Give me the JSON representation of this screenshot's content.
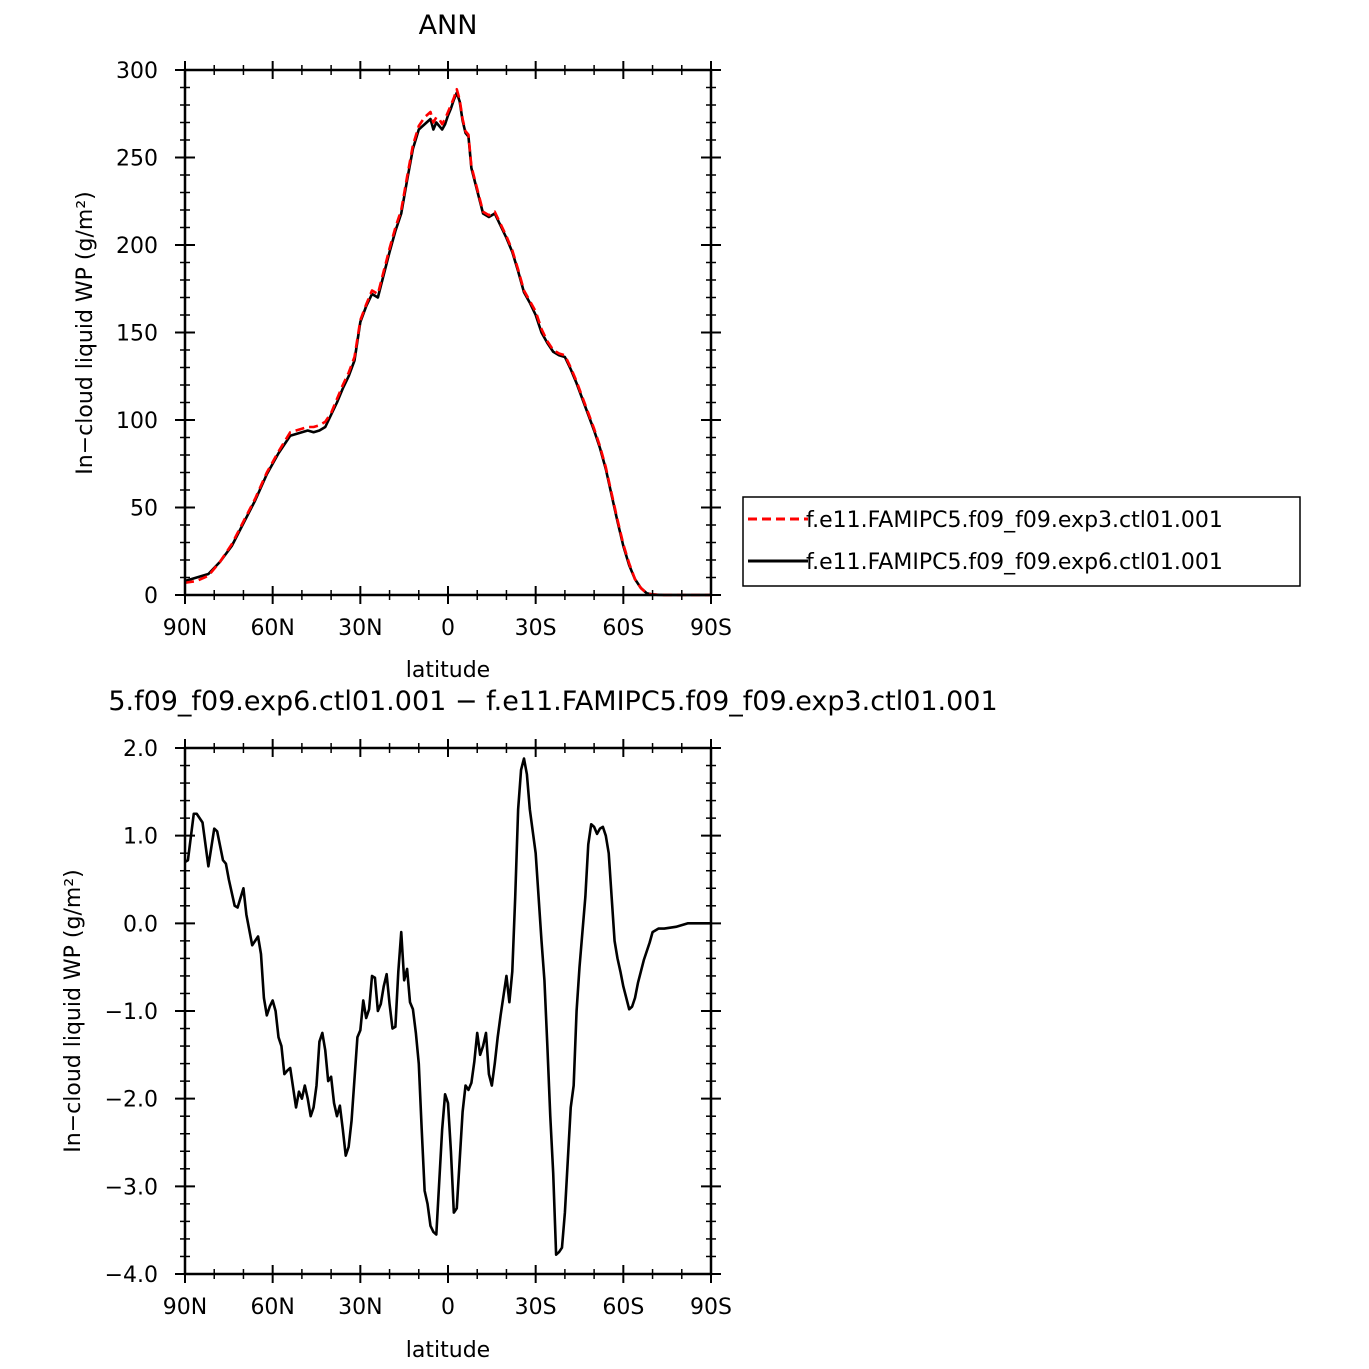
{
  "chart_data": [
    {
      "type": "line",
      "title": "ANN",
      "xlabel": "latitude",
      "ylabel": "In−cloud liquid WP (g/m²)",
      "xlim": [
        90,
        -90
      ],
      "ylim": [
        0,
        300
      ],
      "x_ticks": [
        {
          "value": 90,
          "label": "90N"
        },
        {
          "value": 60,
          "label": "60N"
        },
        {
          "value": 30,
          "label": "30N"
        },
        {
          "value": 0,
          "label": "0"
        },
        {
          "value": -30,
          "label": "30S"
        },
        {
          "value": -60,
          "label": "60S"
        },
        {
          "value": -90,
          "label": "90S"
        }
      ],
      "y_ticks": [
        {
          "value": 0,
          "label": "0"
        },
        {
          "value": 50,
          "label": "50"
        },
        {
          "value": 100,
          "label": "100"
        },
        {
          "value": 150,
          "label": "150"
        },
        {
          "value": 200,
          "label": "200"
        },
        {
          "value": 250,
          "label": "250"
        },
        {
          "value": 300,
          "label": "300"
        }
      ],
      "legend": {
        "placement": "right"
      },
      "series": [
        {
          "name": "f.e11.FAMIPC5.f09_f09.exp3.ctl01.001",
          "color": "#ff0000",
          "dash": "dashed",
          "x": [
            90,
            86,
            82,
            78,
            74,
            70,
            66,
            62,
            58,
            54,
            52,
            50,
            48,
            46,
            44,
            42,
            40,
            38,
            36,
            34,
            32,
            30,
            28,
            26,
            24,
            22,
            20,
            18,
            16,
            14,
            12,
            10,
            8,
            6,
            5,
            4,
            3,
            2,
            1,
            0,
            -1,
            -2,
            -3,
            -4,
            -5,
            -6,
            -7,
            -8,
            -10,
            -12,
            -14,
            -16,
            -18,
            -20,
            -22,
            -24,
            -26,
            -28,
            -30,
            -32,
            -34,
            -36,
            -38,
            -40,
            -42,
            -44,
            -46,
            -48,
            -50,
            -52,
            -54,
            -56,
            -58,
            -60,
            -62,
            -64,
            -66,
            -68,
            -70,
            -72,
            -74,
            -76,
            -78,
            -80,
            -84,
            -90
          ],
          "y": [
            7,
            8,
            11,
            19,
            29,
            42,
            55,
            70,
            82,
            93,
            94,
            95,
            96,
            96,
            97,
            99,
            104,
            112,
            120,
            127,
            136,
            157,
            166,
            174,
            172,
            185,
            198,
            210,
            220,
            239,
            257,
            268,
            273,
            276,
            270,
            273,
            272,
            269,
            272,
            276,
            280,
            284,
            289,
            283,
            272,
            265,
            263,
            245,
            232,
            219,
            217,
            219,
            212,
            205,
            197,
            186,
            174,
            168,
            162,
            152,
            145,
            140,
            138,
            137,
            130,
            122,
            113,
            104,
            95,
            85,
            73,
            58,
            43,
            29,
            18,
            9,
            4,
            1,
            0.3,
            0.1,
            0,
            0,
            0,
            0,
            0,
            0
          ]
        },
        {
          "name": "f.e11.FAMIPC5.f09_f09.exp6.ctl01.001",
          "color": "#000000",
          "dash": "solid",
          "x": [
            90,
            86,
            82,
            78,
            74,
            70,
            66,
            62,
            58,
            54,
            52,
            50,
            48,
            46,
            44,
            42,
            40,
            38,
            36,
            34,
            32,
            30,
            28,
            26,
            24,
            22,
            20,
            18,
            16,
            14,
            12,
            10,
            8,
            6,
            5,
            4,
            3,
            2,
            1,
            0,
            -1,
            -2,
            -3,
            -4,
            -5,
            -6,
            -7,
            -8,
            -10,
            -12,
            -14,
            -16,
            -18,
            -20,
            -22,
            -24,
            -26,
            -28,
            -30,
            -32,
            -34,
            -36,
            -38,
            -40,
            -42,
            -44,
            -46,
            -48,
            -50,
            -52,
            -54,
            -56,
            -58,
            -60,
            -62,
            -64,
            -66,
            -68,
            -70,
            -72,
            -74,
            -76,
            -78,
            -80,
            -84,
            -90
          ],
          "y": [
            8,
            10,
            12,
            19,
            28,
            41,
            54,
            69,
            81,
            91,
            92,
            93,
            94,
            93,
            94,
            96,
            103,
            110,
            118,
            125,
            134,
            156,
            165,
            172,
            170,
            183,
            196,
            208,
            218,
            237,
            255,
            266,
            269,
            272,
            266,
            270,
            268,
            266,
            269,
            274,
            278,
            283,
            287,
            282,
            271,
            264,
            262,
            244,
            231,
            218,
            216,
            218,
            211,
            204,
            196,
            185,
            173,
            167,
            160,
            150,
            144,
            139,
            137,
            136,
            129,
            121,
            112,
            103,
            94,
            84,
            72,
            57,
            42,
            28,
            17,
            9,
            4,
            1,
            0.3,
            0.1,
            0,
            0,
            0,
            0,
            0,
            0
          ]
        }
      ]
    },
    {
      "type": "line",
      "title": "5.f09_f09.exp6.ctl01.001 − f.e11.FAMIPC5.f09_f09.exp3.ctl01.001",
      "xlabel": "latitude",
      "ylabel": "In−cloud liquid WP (g/m²)",
      "xlim": [
        90,
        -90
      ],
      "ylim": [
        -4.0,
        2.0
      ],
      "x_ticks": [
        {
          "value": 90,
          "label": "90N"
        },
        {
          "value": 60,
          "label": "60N"
        },
        {
          "value": 30,
          "label": "30N"
        },
        {
          "value": 0,
          "label": "0"
        },
        {
          "value": -30,
          "label": "30S"
        },
        {
          "value": -60,
          "label": "60S"
        },
        {
          "value": -90,
          "label": "90S"
        }
      ],
      "y_ticks": [
        {
          "value": -4.0,
          "label": "−4.0"
        },
        {
          "value": -3.0,
          "label": "−3.0"
        },
        {
          "value": -2.0,
          "label": "−2.0"
        },
        {
          "value": -1.0,
          "label": "−1.0"
        },
        {
          "value": 0.0,
          "label": "0.0"
        },
        {
          "value": 1.0,
          "label": "1.0"
        },
        {
          "value": 2.0,
          "label": "2.0"
        }
      ],
      "series": [
        {
          "color": "#000000",
          "dash": "solid",
          "x": [
            90,
            89,
            87,
            86,
            84,
            82,
            80,
            79,
            77,
            76,
            75,
            73,
            72,
            70,
            69,
            67,
            66,
            65,
            64,
            63,
            62,
            61,
            60,
            59,
            58,
            57,
            56,
            55,
            54,
            52,
            51,
            50,
            49,
            48,
            47,
            46,
            45,
            44,
            43,
            42,
            41,
            40,
            39,
            38,
            37,
            36,
            35,
            34,
            33,
            31,
            30,
            29,
            28,
            27,
            26,
            25,
            24,
            23,
            22,
            21,
            20,
            19,
            18,
            17,
            16,
            15,
            14,
            13,
            12,
            11,
            10,
            9,
            8,
            7,
            6,
            5,
            4,
            3,
            2,
            1,
            0,
            -1,
            -2,
            -3,
            -4,
            -5,
            -6,
            -7,
            -8,
            -9,
            -10,
            -11,
            -12,
            -13,
            -14,
            -15,
            -16,
            -17,
            -18,
            -20,
            -21,
            -22,
            -23,
            -24,
            -25,
            -26,
            -27,
            -28,
            -29,
            -30,
            -31,
            -32,
            -33,
            -34,
            -35,
            -36,
            -37,
            -38,
            -39,
            -40,
            -41,
            -42,
            -43,
            -44,
            -45,
            -46,
            -47,
            -48,
            -49,
            -50,
            -51,
            -52,
            -53,
            -54,
            -55,
            -56,
            -57,
            -58,
            -59,
            -60,
            -61,
            -62,
            -63,
            -64,
            -65,
            -66,
            -67,
            -68,
            -69,
            -70,
            -72,
            -74,
            -76,
            -78,
            -80,
            -82,
            -84,
            -86,
            -88,
            -90
          ],
          "y": [
            0.7,
            0.72,
            1.25,
            1.25,
            1.15,
            0.65,
            1.08,
            1.05,
            0.72,
            0.68,
            0.5,
            0.2,
            0.18,
            0.4,
            0.1,
            -0.25,
            -0.2,
            -0.15,
            -0.35,
            -0.85,
            -1.05,
            -0.95,
            -0.88,
            -1.0,
            -1.3,
            -1.4,
            -1.72,
            -1.68,
            -1.65,
            -2.1,
            -1.92,
            -2.0,
            -1.85,
            -2.0,
            -2.2,
            -2.1,
            -1.85,
            -1.35,
            -1.25,
            -1.45,
            -1.8,
            -1.75,
            -2.05,
            -2.2,
            -2.08,
            -2.35,
            -2.65,
            -2.55,
            -2.25,
            -1.3,
            -1.22,
            -0.88,
            -1.08,
            -0.98,
            -0.6,
            -0.62,
            -1.0,
            -0.92,
            -0.72,
            -0.58,
            -0.92,
            -1.2,
            -1.18,
            -0.55,
            -0.1,
            -0.65,
            -0.52,
            -0.9,
            -0.98,
            -1.25,
            -1.6,
            -2.35,
            -3.05,
            -3.2,
            -3.45,
            -3.52,
            -3.55,
            -2.95,
            -2.35,
            -1.95,
            -2.05,
            -2.6,
            -3.3,
            -3.25,
            -2.7,
            -2.15,
            -1.85,
            -1.9,
            -1.82,
            -1.58,
            -1.25,
            -1.5,
            -1.4,
            -1.25,
            -1.72,
            -1.85,
            -1.6,
            -1.3,
            -1.05,
            -0.6,
            -0.9,
            -0.55,
            0.3,
            1.3,
            1.75,
            1.88,
            1.7,
            1.3,
            1.05,
            0.8,
            0.3,
            -0.2,
            -0.65,
            -1.4,
            -2.2,
            -2.85,
            -3.78,
            -3.75,
            -3.7,
            -3.3,
            -2.7,
            -2.1,
            -1.85,
            -1.0,
            -0.5,
            -0.1,
            0.3,
            0.9,
            1.13,
            1.1,
            1.02,
            1.08,
            1.1,
            1.0,
            0.8,
            0.3,
            -0.2,
            -0.4,
            -0.55,
            -0.72,
            -0.85,
            -0.98,
            -0.95,
            -0.85,
            -0.68,
            -0.55,
            -0.42,
            -0.32,
            -0.22,
            -0.1,
            -0.06,
            -0.06,
            -0.05,
            -0.04,
            -0.02,
            0.0,
            0.0,
            0.0,
            0.0,
            0.0
          ]
        }
      ]
    }
  ]
}
